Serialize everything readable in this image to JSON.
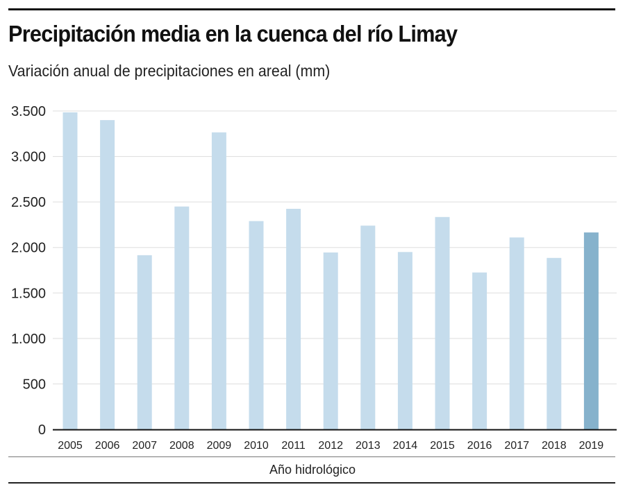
{
  "chart_data": {
    "type": "bar",
    "title": "Precipitación media en la cuenca del río Limay",
    "subtitle": "Variación anual de precipitaciones en areal (mm)",
    "xlabel": "Año hidrológico",
    "ylabel": "",
    "ylim": [
      0,
      3500
    ],
    "yticks": [
      0,
      500,
      1000,
      1500,
      2000,
      2500,
      3000,
      3500
    ],
    "ytick_labels": [
      "0",
      "500",
      "1.000",
      "1.500",
      "2.000",
      "2.500",
      "3.000",
      "3.500"
    ],
    "grid": true,
    "categories": [
      "2005",
      "2006",
      "2007",
      "2008",
      "2009",
      "2010",
      "2011",
      "2012",
      "2013",
      "2014",
      "2015",
      "2016",
      "2017",
      "2018",
      "2019"
    ],
    "values": [
      3485,
      3400,
      1915,
      2450,
      3265,
      2290,
      2425,
      1945,
      2240,
      1950,
      2335,
      1725,
      2110,
      1885,
      2165
    ],
    "highlight_category": "2019",
    "colors": {
      "bar": "#c5dcec",
      "highlight": "#86b2cc",
      "grid": "#dddddd",
      "axis": "#111111"
    }
  }
}
